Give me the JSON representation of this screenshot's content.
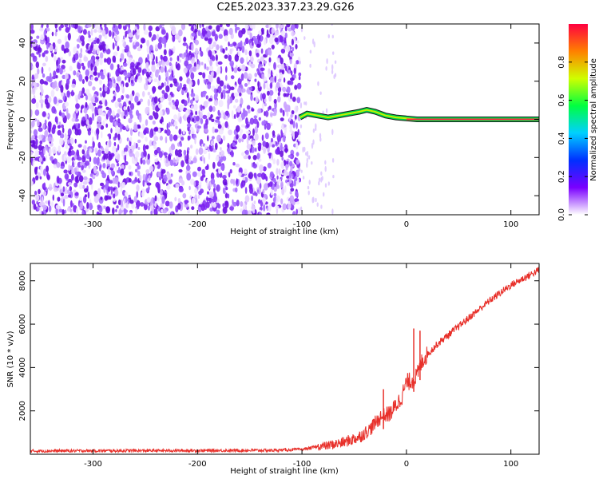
{
  "title": "C2E5.2023.337.23.29.G26",
  "colors": {
    "snr_line": "#e8302a",
    "dots": "#7a1ff0",
    "frame": "#000000"
  },
  "chart_data": [
    {
      "type": "heatmap",
      "xlabel": "Height of straight line (km)",
      "ylabel": "Frequency (Hz)",
      "xlim": [
        -360,
        127
      ],
      "ylim": [
        -50,
        50
      ],
      "xticks": [
        -300,
        -200,
        -100,
        0,
        100
      ],
      "yticks": [
        -40,
        -20,
        0,
        20,
        40
      ],
      "colorbar": {
        "label": "Normalized spectral amplitude",
        "range": [
          0.0,
          1.0
        ],
        "ticks": [
          "0.0",
          "0.2",
          "0.4",
          "0.6",
          "0.8"
        ],
        "colors": [
          "#ffffff",
          "#7a00ff",
          "#0030ff",
          "#00d0ff",
          "#00ff40",
          "#d0ff00",
          "#ff8000",
          "#ff0040"
        ]
      },
      "noise_region_x": [
        -360,
        -102
      ],
      "signal_track": {
        "x": [
          -102,
          -95,
          -85,
          -75,
          -65,
          -55,
          -45,
          -38,
          -30,
          -20,
          -10,
          0,
          10,
          127
        ],
        "freq": [
          1,
          3,
          2,
          1,
          2,
          3,
          4,
          5,
          4,
          2,
          1,
          0.5,
          0,
          0
        ]
      }
    },
    {
      "type": "line",
      "xlabel": "Height of straight line (km)",
      "ylabel": "SNR (10 * v/v)",
      "xlim": [
        -360,
        127
      ],
      "ylim": [
        0,
        8800
      ],
      "xticks": [
        -300,
        -200,
        -100,
        0,
        100
      ],
      "yticks": [
        2000,
        4000,
        6000,
        8000
      ],
      "series": [
        {
          "x": [
            -360,
            -300,
            -200,
            -130,
            -100,
            -85,
            -75,
            -60,
            -45,
            -35,
            -25,
            -15,
            -5,
            0,
            5,
            10,
            15,
            20,
            30,
            40,
            60,
            80,
            100,
            127
          ],
          "values": [
            150,
            160,
            170,
            180,
            220,
            350,
            400,
            550,
            800,
            1150,
            1700,
            1900,
            2600,
            3300,
            3400,
            3600,
            4300,
            4600,
            5100,
            5500,
            6300,
            7100,
            7800,
            8500
          ]
        }
      ],
      "spikes": [
        {
          "x": 7,
          "y": 5800
        },
        {
          "x": 13,
          "y": 5700
        },
        {
          "x": -22,
          "y": 3000
        }
      ]
    }
  ]
}
